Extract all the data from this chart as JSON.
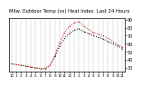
{
  "title": "Milw. Outdoor Temp (vs) Heat Index",
  "subtitle": "Last 24 Hours",
  "bg_color": "#ffffff",
  "plot_bg_color": "#ffffff",
  "grid_color": "#888888",
  "line1_color": "#000000",
  "line2_color": "#cc0000",
  "x_labels": [
    "12",
    "1",
    "2",
    "3",
    "4",
    "5",
    "6",
    "7",
    "8",
    "9",
    "10",
    "11",
    "12",
    "1",
    "2",
    "3",
    "4",
    "5",
    "6",
    "7",
    "8",
    "9",
    "10",
    "11"
  ],
  "temp_data": [
    35,
    34,
    33,
    32,
    31,
    30,
    29,
    29,
    33,
    44,
    57,
    67,
    73,
    77,
    79,
    75,
    73,
    70,
    68,
    66,
    63,
    60,
    57,
    54
  ],
  "heat_data": [
    35,
    34,
    33,
    32,
    31,
    30,
    29,
    29,
    33,
    46,
    62,
    74,
    82,
    86,
    88,
    82,
    78,
    74,
    72,
    70,
    67,
    63,
    59,
    56
  ],
  "ylim": [
    25,
    92
  ],
  "ytick_positions": [
    30,
    40,
    50,
    60,
    70,
    80,
    90
  ],
  "ytick_labels": [
    "30",
    "40",
    "50",
    "60",
    "70",
    "80",
    "90"
  ],
  "ylabel_fontsize": 3.5,
  "xlabel_fontsize": 3.0,
  "title_fontsize": 3.8,
  "linewidth": 0.7,
  "markersize": 1.2
}
